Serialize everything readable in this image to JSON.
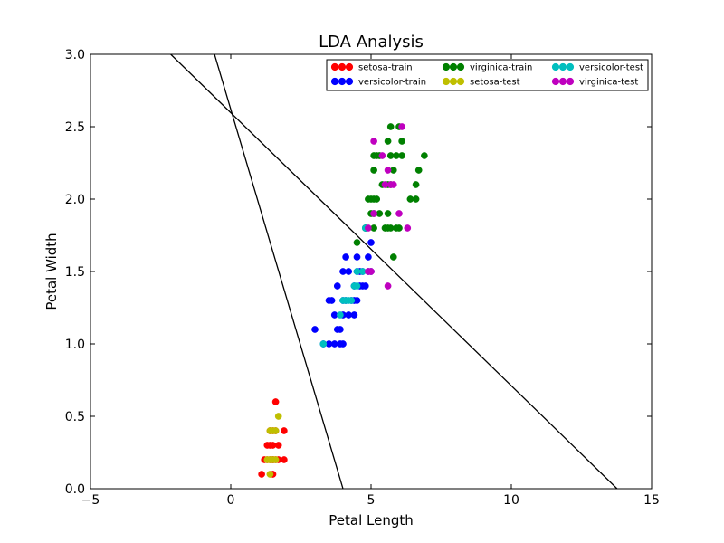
{
  "chart_data": {
    "type": "scatter",
    "title": "LDA Analysis",
    "xlabel": "Petal Length",
    "ylabel": "Petal Width",
    "xlim": [
      -5,
      15
    ],
    "ylim": [
      0,
      3
    ],
    "xticks": [
      "−5",
      "0",
      "5",
      "10",
      "15"
    ],
    "yticks": [
      "0.0",
      "0.5",
      "1.0",
      "1.5",
      "2.0",
      "2.5",
      "3.0"
    ],
    "xtick_values": [
      -5,
      0,
      5,
      10,
      15
    ],
    "ytick_values": [
      0,
      0.5,
      1,
      1.5,
      2,
      2.5,
      3
    ],
    "legend_position": "top-right",
    "series": [
      {
        "name": "setosa-train",
        "color": "#ff0000",
        "points": [
          [
            1.1,
            0.1
          ],
          [
            1.3,
            0.2
          ],
          [
            1.4,
            0.2
          ],
          [
            1.5,
            0.2
          ],
          [
            1.6,
            0.2
          ],
          [
            1.7,
            0.2
          ],
          [
            1.9,
            0.2
          ],
          [
            1.2,
            0.2
          ],
          [
            1.3,
            0.3
          ],
          [
            1.4,
            0.3
          ],
          [
            1.5,
            0.3
          ],
          [
            1.7,
            0.3
          ],
          [
            1.4,
            0.4
          ],
          [
            1.5,
            0.4
          ],
          [
            1.6,
            0.4
          ],
          [
            1.9,
            0.4
          ],
          [
            1.6,
            0.6
          ],
          [
            1.5,
            0.1
          ],
          [
            1.5,
            0.2
          ]
        ]
      },
      {
        "name": "versicolor-train",
        "color": "#0000ff",
        "points": [
          [
            3.0,
            1.1
          ],
          [
            3.3,
            1.0
          ],
          [
            3.5,
            1.0
          ],
          [
            3.7,
            1.0
          ],
          [
            3.9,
            1.0
          ],
          [
            4.0,
            1.0
          ],
          [
            3.9,
            1.1
          ],
          [
            3.5,
            1.3
          ],
          [
            3.6,
            1.3
          ],
          [
            3.8,
            1.1
          ],
          [
            3.7,
            1.2
          ],
          [
            4.0,
            1.2
          ],
          [
            4.2,
            1.2
          ],
          [
            4.4,
            1.2
          ],
          [
            4.0,
            1.3
          ],
          [
            4.1,
            1.3
          ],
          [
            4.3,
            1.3
          ],
          [
            4.4,
            1.3
          ],
          [
            4.5,
            1.3
          ],
          [
            3.8,
            1.4
          ],
          [
            4.4,
            1.4
          ],
          [
            4.6,
            1.4
          ],
          [
            4.7,
            1.4
          ],
          [
            4.8,
            1.4
          ],
          [
            4.0,
            1.5
          ],
          [
            4.2,
            1.5
          ],
          [
            4.5,
            1.5
          ],
          [
            4.6,
            1.5
          ],
          [
            4.7,
            1.5
          ],
          [
            4.9,
            1.5
          ],
          [
            5.0,
            1.5
          ],
          [
            4.1,
            1.6
          ],
          [
            4.5,
            1.6
          ],
          [
            4.9,
            1.6
          ],
          [
            4.8,
            1.8
          ],
          [
            5.0,
            1.7
          ]
        ]
      },
      {
        "name": "virginica-train",
        "color": "#008000",
        "points": [
          [
            4.5,
            1.7
          ],
          [
            4.8,
            1.8
          ],
          [
            5.1,
            1.8
          ],
          [
            5.5,
            1.8
          ],
          [
            5.6,
            1.8
          ],
          [
            5.7,
            1.8
          ],
          [
            5.9,
            1.8
          ],
          [
            6.0,
            1.8
          ],
          [
            5.0,
            1.9
          ],
          [
            5.1,
            1.9
          ],
          [
            5.3,
            1.9
          ],
          [
            5.6,
            1.9
          ],
          [
            4.9,
            2.0
          ],
          [
            5.0,
            2.0
          ],
          [
            5.1,
            2.0
          ],
          [
            5.2,
            2.0
          ],
          [
            6.4,
            2.0
          ],
          [
            6.6,
            2.0
          ],
          [
            5.4,
            2.1
          ],
          [
            5.6,
            2.1
          ],
          [
            5.7,
            2.1
          ],
          [
            6.6,
            2.1
          ],
          [
            5.1,
            2.2
          ],
          [
            5.8,
            2.2
          ],
          [
            6.7,
            2.2
          ],
          [
            5.1,
            2.3
          ],
          [
            5.2,
            2.3
          ],
          [
            5.3,
            2.3
          ],
          [
            5.7,
            2.3
          ],
          [
            5.9,
            2.3
          ],
          [
            6.1,
            2.3
          ],
          [
            6.9,
            2.3
          ],
          [
            5.6,
            2.4
          ],
          [
            6.1,
            2.4
          ],
          [
            5.7,
            2.5
          ],
          [
            6.0,
            2.5
          ],
          [
            5.8,
            1.6
          ]
        ]
      },
      {
        "name": "setosa-test",
        "color": "#bfbf00",
        "points": [
          [
            1.3,
            0.2
          ],
          [
            1.4,
            0.2
          ],
          [
            1.5,
            0.2
          ],
          [
            1.6,
            0.2
          ],
          [
            1.4,
            0.1
          ],
          [
            1.5,
            0.4
          ],
          [
            1.6,
            0.4
          ],
          [
            1.7,
            0.5
          ],
          [
            1.4,
            0.4
          ]
        ]
      },
      {
        "name": "versicolor-test",
        "color": "#00bfbf",
        "points": [
          [
            3.3,
            1.0
          ],
          [
            3.9,
            1.2
          ],
          [
            4.0,
            1.3
          ],
          [
            4.1,
            1.3
          ],
          [
            4.2,
            1.3
          ],
          [
            4.3,
            1.3
          ],
          [
            4.4,
            1.4
          ],
          [
            4.5,
            1.4
          ],
          [
            4.5,
            1.5
          ],
          [
            4.7,
            1.5
          ],
          [
            4.8,
            1.8
          ]
        ]
      },
      {
        "name": "virginica-test",
        "color": "#bf00bf",
        "points": [
          [
            5.1,
            1.9
          ],
          [
            4.9,
            1.8
          ],
          [
            5.0,
            1.5
          ],
          [
            5.4,
            2.3
          ],
          [
            5.5,
            2.1
          ],
          [
            5.6,
            2.2
          ],
          [
            5.8,
            2.1
          ],
          [
            5.1,
            2.4
          ],
          [
            5.6,
            1.4
          ],
          [
            6.0,
            1.9
          ],
          [
            6.3,
            1.8
          ],
          [
            6.1,
            2.5
          ],
          [
            5.7,
            2.1
          ],
          [
            4.9,
            1.5
          ]
        ]
      }
    ],
    "lines": [
      {
        "name": "decision-boundary-1",
        "color": "#000000",
        "x": [
          -2.14,
          13.77
        ],
        "y": [
          3.0,
          0.0
        ]
      },
      {
        "name": "decision-boundary-2",
        "color": "#000000",
        "x": [
          -0.58,
          4.0
        ],
        "y": [
          3.0,
          0.0
        ]
      }
    ]
  }
}
